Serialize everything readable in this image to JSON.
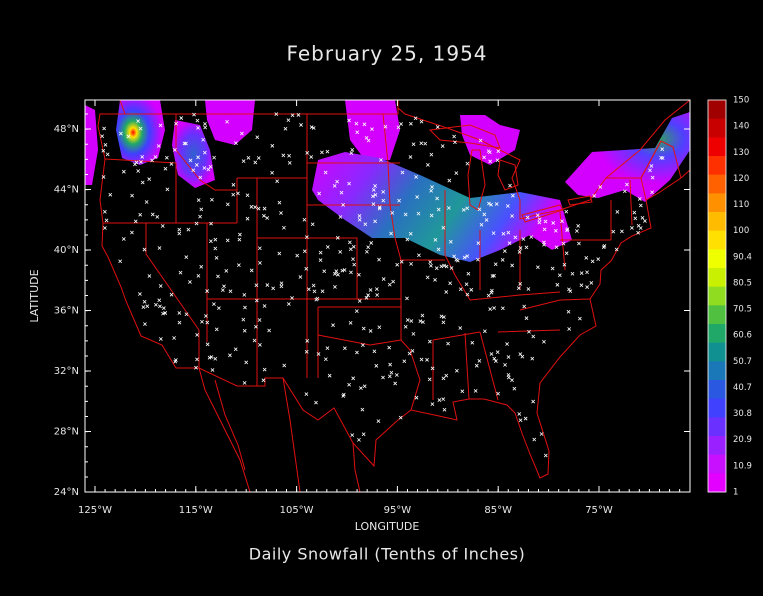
{
  "title": "February 25, 1954",
  "subtitle": "Daily Snowfall (Tenths of Inches)",
  "x_axis": {
    "label": "LONGITUDE",
    "ticks": [
      "125°W",
      "115°W",
      "105°W",
      "95°W",
      "85°W",
      "75°W"
    ]
  },
  "y_axis": {
    "label": "LATITUDE",
    "ticks": [
      "48°N",
      "44°N",
      "40°N",
      "36°N",
      "32°N",
      "28°N",
      "24°N"
    ]
  },
  "colorbar": {
    "labels": [
      "150",
      "140",
      "130",
      "120",
      "110",
      "100",
      "90.4",
      "80.5",
      "70.5",
      "60.6",
      "50.7",
      "40.7",
      "30.8",
      "20.9",
      "10.9",
      "1"
    ],
    "colors": [
      "#a00000",
      "#c80000",
      "#ee0000",
      "#ff3000",
      "#ff6000",
      "#ff9000",
      "#ffbb00",
      "#ffe000",
      "#f0ff00",
      "#c8f000",
      "#90dc20",
      "#50c040",
      "#20a868",
      "#109090",
      "#1a78b8",
      "#2a58e0",
      "#4040ff",
      "#6a30ff",
      "#9a20ff",
      "#c810ff",
      "#e400ff"
    ]
  }
}
